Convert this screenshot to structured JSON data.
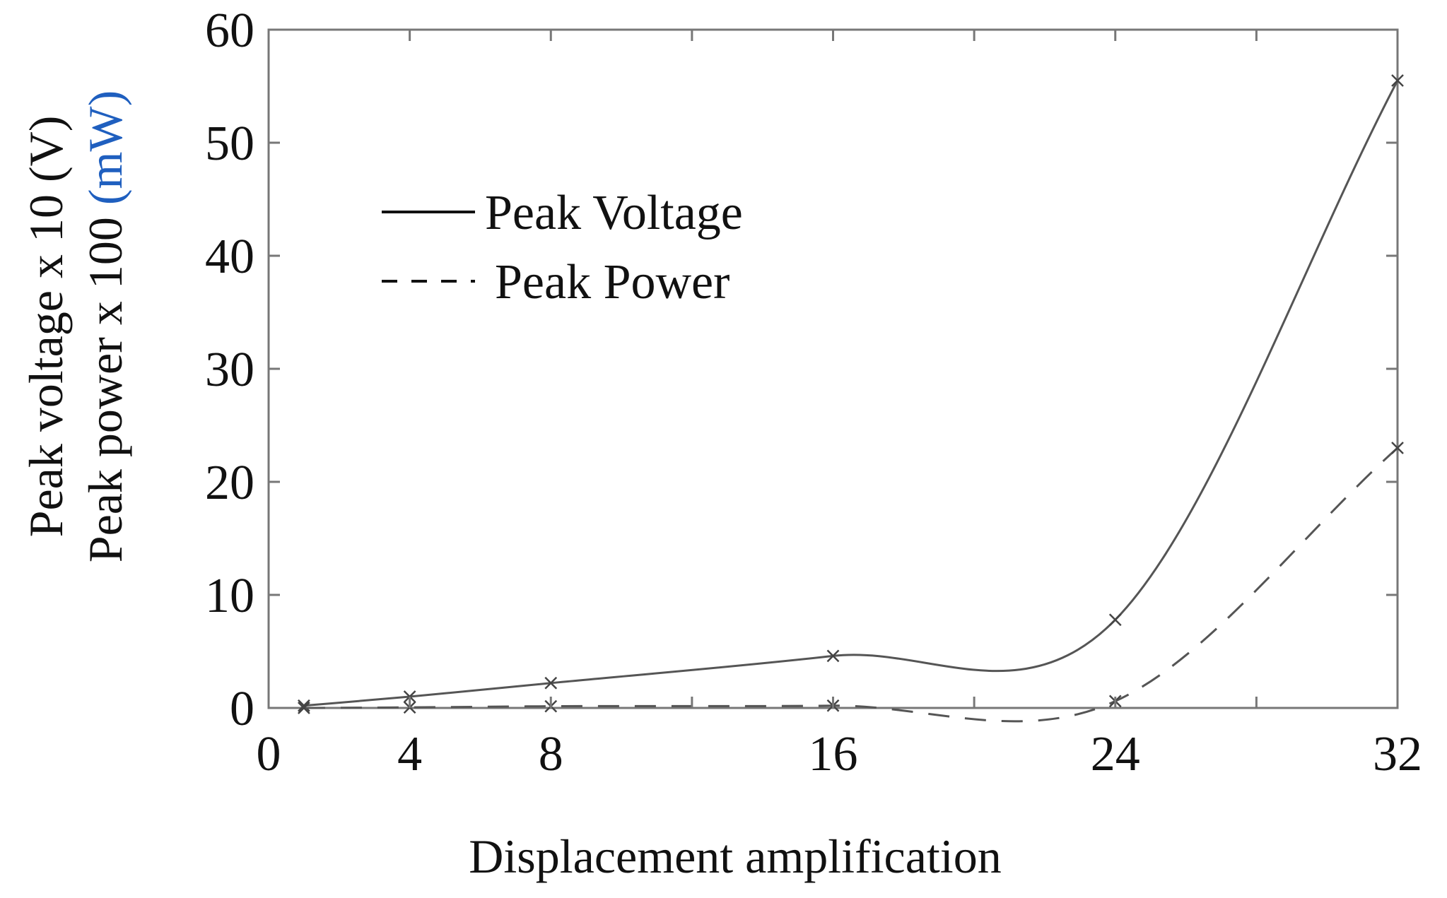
{
  "chart_data": {
    "type": "line",
    "xlabel": "Displacement amplification",
    "ylabel_lines": [
      {
        "text": "Peak voltage x 10 (V)",
        "parts": [
          {
            "text": "Peak voltage x 10 (V)",
            "color": "#111111"
          }
        ]
      },
      {
        "text": "Peak power x 100 (mW)",
        "parts": [
          {
            "text": "Peak power x 100 ",
            "color": "#111111"
          },
          {
            "text": "(mW)",
            "color": "#1f5fbf"
          }
        ]
      }
    ],
    "xlim": [
      0,
      32
    ],
    "ylim": [
      0,
      60
    ],
    "xticks": [
      0,
      4,
      8,
      16,
      24,
      32
    ],
    "xtick_labels": [
      "0",
      "4",
      "8",
      "16",
      "24",
      "32"
    ],
    "yticks": [
      0,
      10,
      20,
      30,
      40,
      50,
      60
    ],
    "ytick_labels": [
      "0",
      "10",
      "20",
      "30",
      "40",
      "50",
      "60"
    ],
    "minor_xticks": [
      12,
      20,
      28
    ],
    "grid": false,
    "legend_position": "top-left",
    "series": [
      {
        "name": "Peak Voltage",
        "style": "solid",
        "color": "#555555",
        "x": [
          1,
          4,
          8,
          16,
          24,
          32
        ],
        "y": [
          0.2,
          1.0,
          2.2,
          4.6,
          7.8,
          55.5
        ]
      },
      {
        "name": "Peak Power",
        "style": "dashed",
        "color": "#555555",
        "x": [
          1,
          4,
          8,
          16,
          24,
          32
        ],
        "y": [
          0.0,
          0.05,
          0.15,
          0.2,
          0.6,
          23.0
        ]
      }
    ]
  }
}
